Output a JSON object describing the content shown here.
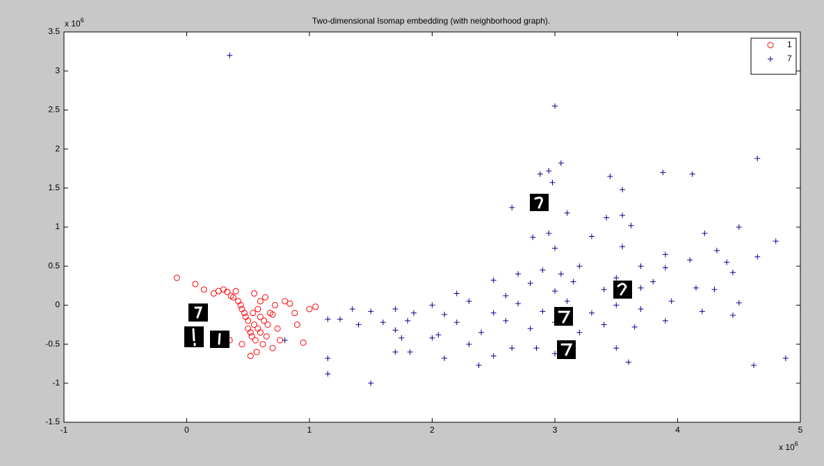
{
  "chart_data": {
    "type": "scatter",
    "title": "Two-dimensional Isomap embedding (with neighborhood graph).",
    "xlim": [
      -1,
      5
    ],
    "ylim": [
      -1.5,
      3.5
    ],
    "xticks": [
      -1,
      0,
      1,
      2,
      3,
      4,
      5
    ],
    "yticks": [
      -1.5,
      -1,
      -0.5,
      0,
      0.5,
      1,
      1.5,
      2,
      2.5,
      3,
      3.5
    ],
    "x_multiplier": {
      "base": "x 10",
      "power": "6"
    },
    "y_multiplier": {
      "base": "x 10",
      "power": "6"
    },
    "legend": "upper right",
    "series": [
      {
        "name": "1",
        "color": "#ff0000",
        "marker": "circle",
        "x": [
          -0.08,
          0.07,
          0.14,
          0.22,
          0.26,
          0.3,
          0.33,
          0.36,
          0.38,
          0.4,
          0.42,
          0.44,
          0.45,
          0.47,
          0.48,
          0.5,
          0.5,
          0.52,
          0.53,
          0.54,
          0.55,
          0.56,
          0.57,
          0.58,
          0.58,
          0.6,
          0.6,
          0.62,
          0.63,
          0.64,
          0.65,
          0.66,
          0.68,
          0.7,
          0.72,
          0.74,
          0.76,
          0.8,
          0.84,
          0.88,
          0.9,
          0.95,
          1.0,
          1.05,
          0.52,
          0.55,
          0.6,
          0.45,
          0.35,
          0.7
        ],
        "y": [
          0.35,
          0.27,
          0.2,
          0.15,
          0.18,
          0.2,
          0.17,
          0.12,
          0.1,
          0.18,
          0.05,
          0.0,
          -0.05,
          -0.1,
          -0.15,
          -0.2,
          -0.3,
          -0.35,
          -0.4,
          -0.1,
          -0.25,
          -0.45,
          -0.6,
          -0.3,
          -0.05,
          -0.15,
          -0.35,
          -0.5,
          -0.2,
          0.1,
          -0.4,
          -0.25,
          -0.1,
          -0.55,
          0.0,
          -0.3,
          -0.45,
          0.05,
          0.02,
          -0.1,
          -0.25,
          -0.48,
          -0.05,
          -0.02,
          -0.65,
          0.15,
          0.05,
          -0.5,
          -0.45,
          -0.12
        ]
      },
      {
        "name": "7",
        "color": "#00008b",
        "marker": "plus",
        "x": [
          0.35,
          3.0,
          4.65,
          3.05,
          2.95,
          2.88,
          3.88,
          4.12,
          3.45,
          2.98,
          3.55,
          2.65,
          3.1,
          3.55,
          3.42,
          3.62,
          4.5,
          2.95,
          4.22,
          2.82,
          3.3,
          4.8,
          3.0,
          3.55,
          4.32,
          3.9,
          4.65,
          2.9,
          3.2,
          3.7,
          4.1,
          4.4,
          2.7,
          3.05,
          3.5,
          3.9,
          4.45,
          2.5,
          2.8,
          3.15,
          3.8,
          4.15,
          2.2,
          2.6,
          3.0,
          3.4,
          3.7,
          4.3,
          2.0,
          2.3,
          2.7,
          3.1,
          3.5,
          3.95,
          4.5,
          1.35,
          1.5,
          1.7,
          1.85,
          2.1,
          2.5,
          2.9,
          3.3,
          3.7,
          4.2,
          4.45,
          1.15,
          1.25,
          1.6,
          1.8,
          2.2,
          2.6,
          3.0,
          3.4,
          3.9,
          1.4,
          1.7,
          2.05,
          2.4,
          2.8,
          3.2,
          3.65,
          1.75,
          2.0,
          2.3,
          2.65,
          2.85,
          3.5,
          1.7,
          1.82,
          2.1,
          2.5,
          3.0,
          3.6,
          1.15,
          1.15,
          1.5,
          2.38,
          4.62,
          4.88,
          0.8
        ],
        "y": [
          3.2,
          2.55,
          1.88,
          1.82,
          1.72,
          1.68,
          1.7,
          1.68,
          1.65,
          1.57,
          1.48,
          1.25,
          1.18,
          1.15,
          1.12,
          1.02,
          1.0,
          0.92,
          0.92,
          0.87,
          0.88,
          0.82,
          0.73,
          0.75,
          0.7,
          0.65,
          0.62,
          0.45,
          0.5,
          0.5,
          0.58,
          0.55,
          0.4,
          0.4,
          0.35,
          0.48,
          0.42,
          0.32,
          0.28,
          0.3,
          0.3,
          0.22,
          0.15,
          0.12,
          0.18,
          0.2,
          0.22,
          0.2,
          0.0,
          0.05,
          0.02,
          0.05,
          0.0,
          0.05,
          0.03,
          -0.05,
          -0.08,
          -0.05,
          -0.1,
          -0.12,
          -0.1,
          -0.08,
          -0.1,
          -0.05,
          -0.08,
          -0.13,
          -0.18,
          -0.18,
          -0.22,
          -0.2,
          -0.22,
          -0.2,
          -0.22,
          -0.25,
          -0.2,
          -0.25,
          -0.32,
          -0.38,
          -0.35,
          -0.3,
          -0.35,
          -0.28,
          -0.42,
          -0.42,
          -0.5,
          -0.55,
          -0.55,
          -0.55,
          -0.6,
          -0.6,
          -0.68,
          -0.65,
          -0.62,
          -0.73,
          -0.68,
          -0.88,
          -1.0,
          -0.77,
          -0.77,
          -0.68,
          -0.45
        ]
      }
    ]
  }
}
